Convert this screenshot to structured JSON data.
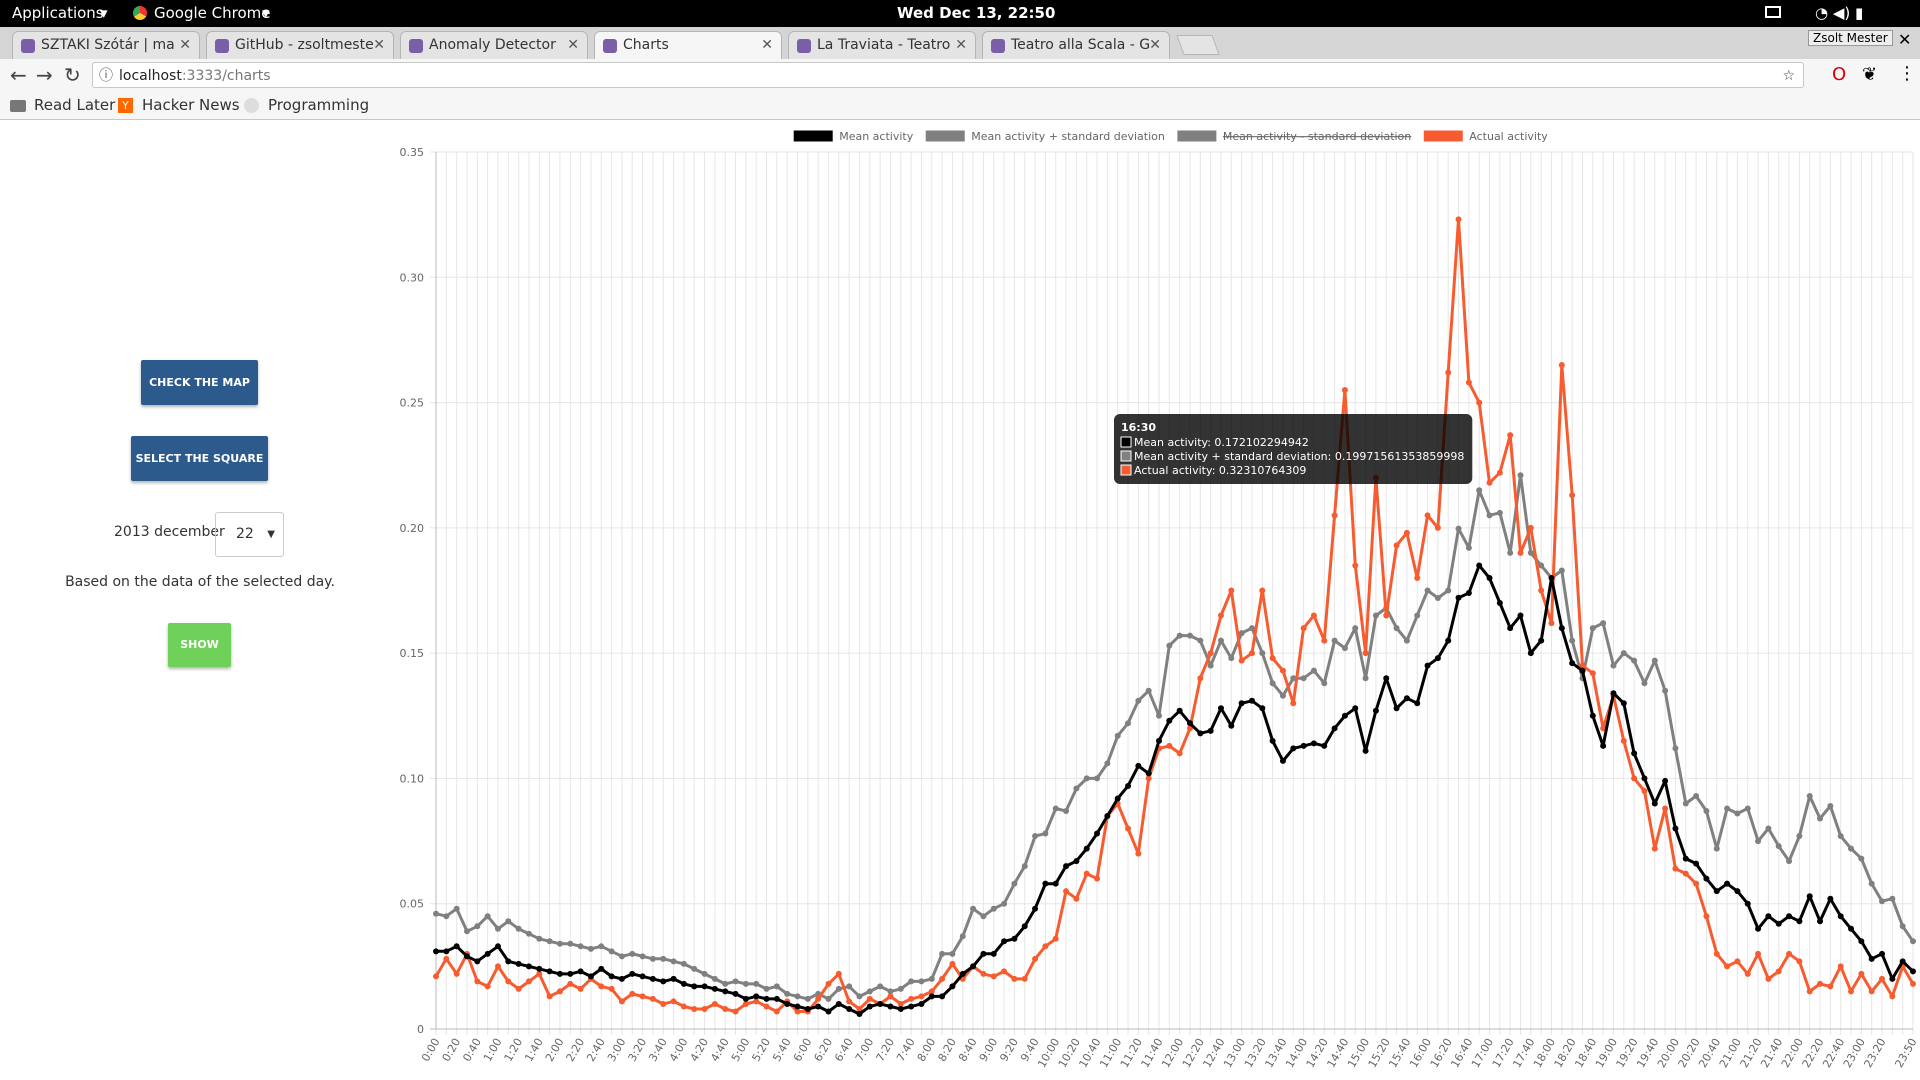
{
  "top_bar": {
    "applications": "Applications",
    "browser": "Google Chrome",
    "clock": "Wed Dec 13, 22:50",
    "profile": "Zsolt Mester"
  },
  "tabs": [
    {
      "title": "SZTAKI Szótár | ma",
      "active": false
    },
    {
      "title": "GitHub - zsoltmeste",
      "active": false
    },
    {
      "title": "Anomaly Detector",
      "active": false
    },
    {
      "title": "Charts",
      "active": true
    },
    {
      "title": "La Traviata - Teatro",
      "active": false
    },
    {
      "title": "Teatro alla Scala - G",
      "active": false
    }
  ],
  "address": {
    "host": "localhost",
    "path": ":3333/charts"
  },
  "bookmarks": [
    "Read Later",
    "Hacker News",
    "Programming"
  ],
  "sidebar": {
    "check_map": "CHECK THE MAP",
    "select_square": "SELECT THE SQUARE",
    "date_label": "2013 december",
    "day": "22",
    "note": "Based on the data of the selected day.",
    "show": "SHOW"
  },
  "chart_data": {
    "type": "line",
    "categories": [
      "0:00",
      null,
      "0:20",
      null,
      "0:40",
      null,
      "1:00",
      null,
      "1:20",
      null,
      "1:40",
      null,
      "2:00",
      null,
      "2:20",
      null,
      "2:40",
      null,
      "3:00",
      null,
      "3:20",
      null,
      "3:40",
      null,
      "4:00",
      null,
      "4:20",
      null,
      "4:40",
      null,
      "5:00",
      null,
      "5:20",
      null,
      "5:40",
      null,
      "6:00",
      null,
      "6:20",
      null,
      "6:40",
      null,
      "7:00",
      null,
      "7:20",
      null,
      "7:40",
      null,
      "8:00",
      null,
      "8:20",
      null,
      "8:40",
      null,
      "9:00",
      null,
      "9:20",
      null,
      "9:40",
      null,
      "10:00",
      null,
      "10:20",
      null,
      "10:40",
      null,
      "11:00",
      null,
      "11:20",
      null,
      "11:40",
      null,
      "12:00",
      null,
      "12:20",
      null,
      "12:40",
      null,
      "13:00",
      null,
      "13:20",
      null,
      "13:40",
      null,
      "14:00",
      null,
      "14:20",
      null,
      "14:40",
      null,
      "15:00",
      null,
      "15:20",
      null,
      "15:40",
      null,
      "16:00",
      null,
      "16:20",
      null,
      "16:40",
      null,
      "17:00",
      null,
      "17:20",
      null,
      "17:40",
      null,
      "18:00",
      null,
      "18:20",
      null,
      "18:40",
      null,
      "19:00",
      null,
      "19:20",
      null,
      "19:40",
      null,
      "20:00",
      null,
      "20:20",
      null,
      "20:40",
      null,
      "21:00",
      null,
      "21:20",
      null,
      "21:40",
      null,
      "22:00",
      null,
      "22:20",
      null,
      "22:40",
      null,
      "23:00",
      null,
      "23:20",
      null,
      null,
      "23:50"
    ],
    "series": [
      {
        "name": "Mean activity",
        "color": "#000000",
        "values": [
          0.031,
          0.031,
          0.033,
          0.029,
          0.027,
          0.03,
          0.033,
          0.027,
          0.026,
          0.025,
          0.024,
          0.023,
          0.022,
          0.022,
          0.023,
          0.021,
          0.024,
          0.021,
          0.02,
          0.022,
          0.021,
          0.02,
          0.019,
          0.02,
          0.018,
          0.017,
          0.017,
          0.016,
          0.015,
          0.014,
          0.012,
          0.013,
          0.012,
          0.012,
          0.01,
          0.009,
          0.008,
          0.009,
          0.007,
          0.01,
          0.008,
          0.006,
          0.009,
          0.01,
          0.009,
          0.008,
          0.009,
          0.01,
          0.013,
          0.013,
          0.017,
          0.022,
          0.025,
          0.03,
          0.03,
          0.035,
          0.036,
          0.041,
          0.048,
          0.058,
          0.058,
          0.065,
          0.067,
          0.072,
          0.078,
          0.085,
          0.092,
          0.097,
          0.105,
          0.102,
          0.115,
          0.123,
          0.127,
          0.122,
          0.118,
          0.119,
          0.128,
          0.121,
          0.13,
          0.131,
          0.128,
          0.115,
          0.107,
          0.112,
          0.113,
          0.114,
          0.113,
          0.12,
          0.125,
          0.128,
          0.111,
          0.127,
          0.14,
          0.128,
          0.132,
          0.13,
          0.145,
          0.148,
          0.155,
          0.172102294942,
          0.174,
          0.185,
          0.18,
          0.17,
          0.16,
          0.165,
          0.15,
          0.155,
          0.18,
          0.16,
          0.146,
          0.143,
          0.125,
          0.113,
          0.134,
          0.13,
          0.11,
          0.1,
          0.09,
          0.099,
          0.08,
          0.068,
          0.066,
          0.06,
          0.055,
          0.058,
          0.055,
          0.05,
          0.04,
          0.045,
          0.042,
          0.045,
          0.043,
          0.053,
          0.043,
          0.052,
          0.045,
          0.04,
          0.035,
          0.028,
          0.03,
          0.02,
          0.027,
          0.023
        ]
      },
      {
        "name": "Mean activity + standard deviation",
        "color": "#808080",
        "values": [
          0.046,
          0.045,
          0.048,
          0.039,
          0.041,
          0.045,
          0.04,
          0.043,
          0.04,
          0.038,
          0.036,
          0.035,
          0.034,
          0.034,
          0.033,
          0.032,
          0.033,
          0.031,
          0.029,
          0.03,
          0.029,
          0.028,
          0.028,
          0.027,
          0.026,
          0.024,
          0.022,
          0.02,
          0.018,
          0.019,
          0.018,
          0.018,
          0.016,
          0.017,
          0.014,
          0.013,
          0.012,
          0.014,
          0.012,
          0.016,
          0.017,
          0.013,
          0.015,
          0.017,
          0.015,
          0.016,
          0.019,
          0.019,
          0.02,
          0.03,
          0.03,
          0.037,
          0.048,
          0.045,
          0.048,
          0.05,
          0.058,
          0.065,
          0.077,
          0.078,
          0.088,
          0.087,
          0.096,
          0.1,
          0.1,
          0.106,
          0.117,
          0.122,
          0.131,
          0.135,
          0.125,
          0.153,
          0.157,
          0.157,
          0.155,
          0.145,
          0.155,
          0.148,
          0.158,
          0.16,
          0.15,
          0.138,
          0.133,
          0.14,
          0.14,
          0.143,
          0.138,
          0.155,
          0.152,
          0.16,
          0.14,
          0.165,
          0.168,
          0.16,
          0.155,
          0.165,
          0.175,
          0.172,
          0.175,
          0.19971561353859998,
          0.192,
          0.215,
          0.205,
          0.206,
          0.19,
          0.221,
          0.19,
          0.185,
          0.18,
          0.183,
          0.155,
          0.14,
          0.16,
          0.162,
          0.145,
          0.15,
          0.147,
          0.138,
          0.147,
          0.135,
          0.112,
          0.09,
          0.093,
          0.087,
          0.072,
          0.088,
          0.086,
          0.088,
          0.075,
          0.08,
          0.073,
          0.067,
          0.077,
          0.093,
          0.084,
          0.089,
          0.077,
          0.072,
          0.068,
          0.058,
          0.051,
          0.052,
          0.041,
          0.035
        ]
      },
      {
        "name": "Mean activity - standard deviation",
        "color": "#808080",
        "hidden": true
      },
      {
        "name": "Actual activity",
        "color": "#f75c30",
        "values": [
          0.021,
          0.028,
          0.022,
          0.03,
          0.019,
          0.017,
          0.025,
          0.019,
          0.016,
          0.019,
          0.022,
          0.013,
          0.015,
          0.018,
          0.016,
          0.02,
          0.017,
          0.016,
          0.011,
          0.014,
          0.013,
          0.012,
          0.01,
          0.011,
          0.009,
          0.008,
          0.008,
          0.01,
          0.008,
          0.007,
          0.01,
          0.011,
          0.009,
          0.007,
          0.011,
          0.007,
          0.007,
          0.012,
          0.018,
          0.022,
          0.011,
          0.008,
          0.012,
          0.01,
          0.013,
          0.01,
          0.012,
          0.013,
          0.015,
          0.02,
          0.026,
          0.02,
          0.025,
          0.022,
          0.021,
          0.023,
          0.02,
          0.02,
          0.028,
          0.033,
          0.036,
          0.055,
          0.052,
          0.062,
          0.06,
          0.085,
          0.09,
          0.08,
          0.07,
          0.1,
          0.112,
          0.113,
          0.11,
          0.12,
          0.14,
          0.15,
          0.165,
          0.175,
          0.147,
          0.15,
          0.175,
          0.148,
          0.143,
          0.13,
          0.16,
          0.165,
          0.155,
          0.205,
          0.255,
          0.185,
          0.15,
          0.22,
          0.165,
          0.193,
          0.198,
          0.18,
          0.205,
          0.2,
          0.262,
          0.32310764309,
          0.258,
          0.25,
          0.218,
          0.222,
          0.237,
          0.19,
          0.2,
          0.175,
          0.162,
          0.265,
          0.213,
          0.145,
          0.142,
          0.12,
          0.133,
          0.115,
          0.1,
          0.095,
          0.072,
          0.088,
          0.064,
          0.062,
          0.058,
          0.045,
          0.03,
          0.025,
          0.027,
          0.022,
          0.03,
          0.02,
          0.023,
          0.03,
          0.027,
          0.015,
          0.018,
          0.017,
          0.025,
          0.015,
          0.022,
          0.015,
          0.02,
          0.013,
          0.025,
          0.018
        ]
      }
    ],
    "ylim": [
      0,
      0.35
    ],
    "yticks": [
      0,
      0.05,
      {
        "value": 0.1,
        "label": "0.10"
      },
      0.15,
      {
        "value": 0.2,
        "label": "0.20"
      },
      0.25,
      {
        "value": 0.3,
        "label": "0.30"
      },
      0.35
    ],
    "grid": true,
    "legend": "top",
    "tooltip": {
      "title": "16:30",
      "lines": [
        {
          "text": "Mean activity: 0.172102294942",
          "color": "#000000"
        },
        {
          "text": "Mean activity + standard deviation: 0.19971561353859998",
          "color": "#808080"
        },
        {
          "text": "Actual activity: 0.32310764309",
          "color": "#f75c30"
        }
      ]
    }
  }
}
